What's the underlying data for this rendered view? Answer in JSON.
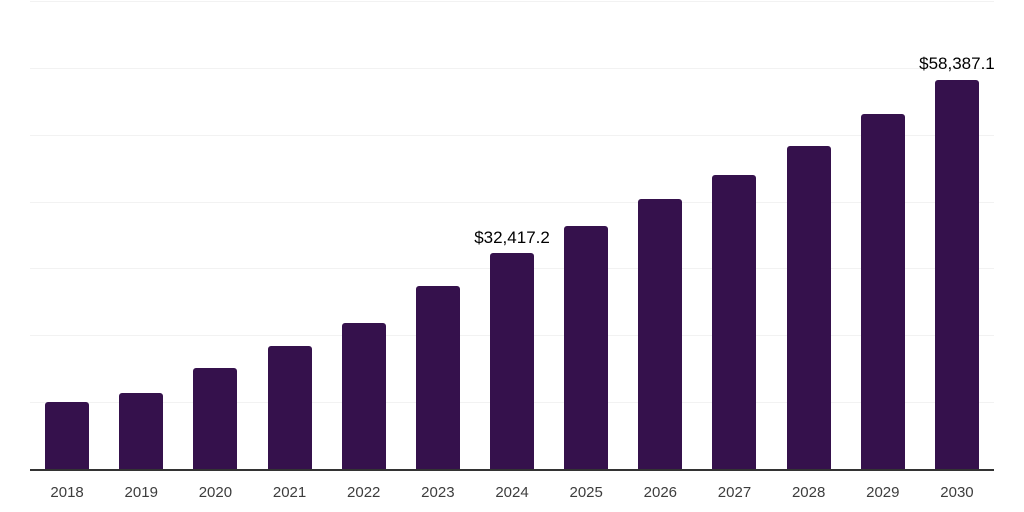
{
  "chart_data": {
    "type": "bar",
    "categories": [
      "2018",
      "2019",
      "2020",
      "2021",
      "2022",
      "2023",
      "2024",
      "2025",
      "2026",
      "2027",
      "2028",
      "2029",
      "2030"
    ],
    "values": [
      10100,
      11500,
      15200,
      18600,
      22000,
      27500,
      32417.2,
      36500,
      40600,
      44200,
      48500,
      53300,
      58387.1
    ],
    "data_labels": [
      null,
      null,
      null,
      null,
      null,
      null,
      "$32,417.2",
      null,
      null,
      null,
      null,
      null,
      "$58,387.1"
    ],
    "title": "",
    "xlabel": "",
    "ylabel": "",
    "ylim": [
      0,
      70000
    ],
    "gridline_step": 10000,
    "grid": true,
    "legend": false,
    "colors": {
      "bar": "#35114c",
      "gridline": "#f2f2f2",
      "axis": "#333333",
      "tick_label": "#3d3d3d",
      "data_label": "#000000",
      "background": "#ffffff"
    }
  }
}
